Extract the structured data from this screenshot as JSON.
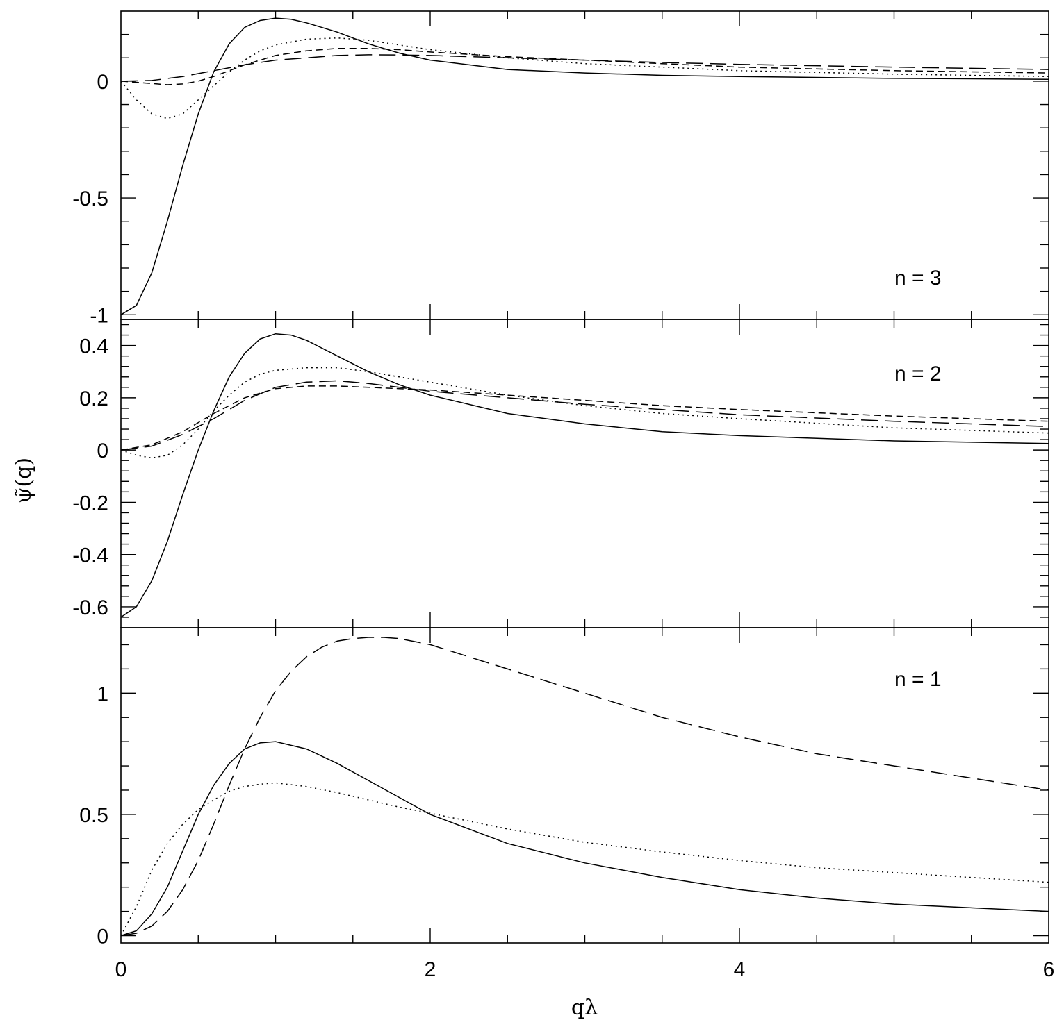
{
  "chart_data": [
    {
      "type": "line",
      "panel": "top",
      "annotation": "n = 3",
      "xlabel": "qλ",
      "ylabel": "ψ̃(q)",
      "xlim": [
        0,
        6
      ],
      "ylim": [
        -1.02,
        0.3
      ],
      "x_ticks": [
        "0",
        "2",
        "4",
        "6"
      ],
      "y_ticks": [
        {
          "value": 0,
          "label": "0"
        },
        {
          "value": -0.5,
          "label": "-0.5"
        },
        {
          "value": -1,
          "label": "-1"
        }
      ],
      "series": [
        {
          "style": "solid",
          "x": [
            0,
            0.1,
            0.2,
            0.3,
            0.4,
            0.5,
            0.6,
            0.7,
            0.8,
            0.9,
            1.0,
            1.1,
            1.2,
            1.4,
            1.6,
            1.8,
            2.0,
            2.5,
            3.0,
            3.5,
            4.0,
            5.0,
            6.0
          ],
          "y": [
            -1.0,
            -0.96,
            -0.82,
            -0.6,
            -0.36,
            -0.14,
            0.04,
            0.16,
            0.23,
            0.26,
            0.27,
            0.265,
            0.25,
            0.21,
            0.16,
            0.12,
            0.09,
            0.05,
            0.035,
            0.025,
            0.02,
            0.012,
            0.008
          ]
        },
        {
          "style": "dotted",
          "x": [
            0,
            0.1,
            0.2,
            0.3,
            0.4,
            0.5,
            0.6,
            0.7,
            0.8,
            0.9,
            1.0,
            1.2,
            1.4,
            1.6,
            1.8,
            2.0,
            2.5,
            3.0,
            3.5,
            4.0,
            5.0,
            6.0
          ],
          "y": [
            0,
            -0.08,
            -0.14,
            -0.16,
            -0.14,
            -0.08,
            -0.02,
            0.04,
            0.09,
            0.13,
            0.155,
            0.18,
            0.185,
            0.175,
            0.155,
            0.135,
            0.1,
            0.075,
            0.06,
            0.045,
            0.03,
            0.02
          ]
        },
        {
          "style": "short-dash",
          "x": [
            0,
            0.2,
            0.3,
            0.4,
            0.5,
            0.6,
            0.7,
            0.8,
            1.0,
            1.2,
            1.4,
            1.6,
            1.8,
            2.0,
            2.5,
            3.0,
            3.5,
            4.0,
            5.0,
            6.0
          ],
          "y": [
            0,
            -0.01,
            -0.015,
            -0.012,
            0.0,
            0.02,
            0.045,
            0.07,
            0.11,
            0.13,
            0.14,
            0.14,
            0.135,
            0.125,
            0.105,
            0.09,
            0.075,
            0.06,
            0.045,
            0.035
          ]
        },
        {
          "style": "long-dash",
          "x": [
            0,
            0.2,
            0.4,
            0.6,
            0.8,
            1.0,
            1.2,
            1.4,
            1.6,
            1.8,
            2.0,
            2.5,
            3.0,
            3.5,
            4.0,
            5.0,
            6.0
          ],
          "y": [
            0,
            0.003,
            0.02,
            0.045,
            0.07,
            0.09,
            0.1,
            0.11,
            0.113,
            0.112,
            0.11,
            0.1,
            0.09,
            0.08,
            0.072,
            0.06,
            0.05
          ]
        }
      ]
    },
    {
      "type": "line",
      "panel": "middle",
      "annotation": "n = 2",
      "xlim": [
        0,
        6
      ],
      "ylim": [
        -0.68,
        0.5
      ],
      "y_ticks": [
        {
          "value": 0.4,
          "label": "0.4"
        },
        {
          "value": 0.2,
          "label": "0.2"
        },
        {
          "value": 0,
          "label": "0"
        },
        {
          "value": -0.2,
          "label": "-0.2"
        },
        {
          "value": -0.4,
          "label": "-0.4"
        },
        {
          "value": -0.6,
          "label": "-0.6"
        }
      ],
      "series": [
        {
          "style": "solid",
          "x": [
            0,
            0.1,
            0.2,
            0.3,
            0.4,
            0.5,
            0.6,
            0.7,
            0.8,
            0.9,
            1.0,
            1.1,
            1.2,
            1.4,
            1.6,
            1.8,
            2.0,
            2.5,
            3.0,
            3.5,
            4.0,
            5.0,
            6.0
          ],
          "y": [
            -0.64,
            -0.6,
            -0.5,
            -0.35,
            -0.17,
            0.0,
            0.15,
            0.28,
            0.37,
            0.425,
            0.445,
            0.44,
            0.42,
            0.36,
            0.3,
            0.25,
            0.21,
            0.14,
            0.1,
            0.07,
            0.055,
            0.035,
            0.025
          ]
        },
        {
          "style": "dotted",
          "x": [
            0,
            0.1,
            0.2,
            0.3,
            0.4,
            0.5,
            0.6,
            0.7,
            0.8,
            0.9,
            1.0,
            1.2,
            1.4,
            1.6,
            1.8,
            2.0,
            2.5,
            3.0,
            3.5,
            4.0,
            5.0,
            6.0
          ],
          "y": [
            0,
            -0.02,
            -0.03,
            -0.02,
            0.02,
            0.08,
            0.15,
            0.21,
            0.26,
            0.29,
            0.305,
            0.315,
            0.315,
            0.3,
            0.28,
            0.26,
            0.21,
            0.17,
            0.14,
            0.12,
            0.085,
            0.065
          ]
        },
        {
          "style": "short-dash",
          "x": [
            0,
            0.2,
            0.4,
            0.6,
            0.8,
            1.0,
            1.2,
            1.4,
            1.6,
            1.8,
            2.0,
            2.5,
            3.0,
            3.5,
            4.0,
            5.0,
            6.0
          ],
          "y": [
            0,
            0.02,
            0.07,
            0.14,
            0.2,
            0.235,
            0.245,
            0.245,
            0.24,
            0.235,
            0.23,
            0.21,
            0.19,
            0.17,
            0.155,
            0.13,
            0.11
          ]
        },
        {
          "style": "long-dash",
          "x": [
            0,
            0.2,
            0.4,
            0.6,
            0.8,
            1.0,
            1.2,
            1.4,
            1.6,
            1.8,
            2.0,
            2.5,
            3.0,
            3.5,
            4.0,
            5.0,
            6.0
          ],
          "y": [
            0,
            0.015,
            0.06,
            0.12,
            0.19,
            0.24,
            0.26,
            0.265,
            0.255,
            0.24,
            0.225,
            0.2,
            0.175,
            0.155,
            0.135,
            0.11,
            0.09
          ]
        }
      ]
    },
    {
      "type": "line",
      "panel": "bottom",
      "annotation": "n = 1",
      "xlim": [
        0,
        6
      ],
      "ylim": [
        -0.03,
        1.27
      ],
      "x_ticks": [
        "0",
        "2",
        "4",
        "6"
      ],
      "y_ticks": [
        {
          "value": 1,
          "label": "1"
        },
        {
          "value": 0.5,
          "label": "0.5"
        },
        {
          "value": 0,
          "label": "0"
        }
      ],
      "series": [
        {
          "style": "solid",
          "x": [
            0,
            0.1,
            0.2,
            0.3,
            0.4,
            0.5,
            0.6,
            0.7,
            0.8,
            0.9,
            1.0,
            1.2,
            1.4,
            1.6,
            1.8,
            2.0,
            2.5,
            3.0,
            3.5,
            4.0,
            4.5,
            5.0,
            6.0
          ],
          "y": [
            0,
            0.02,
            0.09,
            0.2,
            0.35,
            0.5,
            0.62,
            0.71,
            0.77,
            0.795,
            0.8,
            0.77,
            0.71,
            0.64,
            0.57,
            0.5,
            0.38,
            0.3,
            0.24,
            0.19,
            0.155,
            0.13,
            0.1
          ]
        },
        {
          "style": "dotted",
          "x": [
            0,
            0.1,
            0.2,
            0.3,
            0.4,
            0.5,
            0.6,
            0.7,
            0.8,
            0.9,
            1.0,
            1.2,
            1.4,
            1.6,
            1.8,
            2.0,
            2.5,
            3.0,
            3.5,
            4.0,
            4.5,
            5.0,
            6.0
          ],
          "y": [
            0,
            0.12,
            0.27,
            0.38,
            0.46,
            0.52,
            0.56,
            0.595,
            0.615,
            0.625,
            0.63,
            0.615,
            0.59,
            0.56,
            0.53,
            0.505,
            0.44,
            0.385,
            0.345,
            0.31,
            0.28,
            0.26,
            0.22
          ]
        },
        {
          "style": "long-dash",
          "x": [
            0,
            0.1,
            0.2,
            0.3,
            0.4,
            0.5,
            0.6,
            0.7,
            0.8,
            0.9,
            1.0,
            1.1,
            1.2,
            1.3,
            1.4,
            1.5,
            1.6,
            1.7,
            1.8,
            2.0,
            2.5,
            3.0,
            3.5,
            4.0,
            4.5,
            5.0,
            6.0
          ],
          "y": [
            0,
            0.01,
            0.04,
            0.1,
            0.19,
            0.31,
            0.46,
            0.62,
            0.77,
            0.9,
            1.01,
            1.09,
            1.15,
            1.19,
            1.215,
            1.225,
            1.23,
            1.23,
            1.225,
            1.2,
            1.1,
            1.0,
            0.9,
            0.82,
            0.75,
            0.7,
            0.6
          ]
        }
      ]
    }
  ]
}
